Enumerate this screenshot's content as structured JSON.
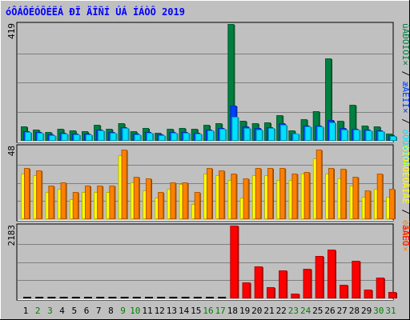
{
  "chart_data": {
    "type": "bar",
    "title": "óÔÁÔÉÓÔÉËÁ ÐÏ ÄÎÑÍ ÚÁ ÍÁÒÔ 2019",
    "days": [
      "1",
      "2",
      "3",
      "4",
      "5",
      "6",
      "7",
      "8",
      "9",
      "10",
      "11",
      "12",
      "13",
      "14",
      "15",
      "16",
      "17",
      "18",
      "19",
      "20",
      "21",
      "22",
      "23",
      "24",
      "25",
      "26",
      "27",
      "28",
      "29",
      "30",
      "31"
    ],
    "weekend_days": [
      "2",
      "3",
      "9",
      "10",
      "16",
      "17",
      "23",
      "24",
      "30",
      "31"
    ],
    "colors": {
      "title": "#0000ff",
      "weekend": "#008000",
      "weekday": "#000000",
      "hits": "#008040",
      "files": "#0040ff",
      "pages": "#00e0ff",
      "visits": "#ffff00",
      "hosts": "#ff8000",
      "kbytes": "#ff0000"
    },
    "panels": [
      {
        "name": "requests",
        "ymax_label": "419",
        "ymax": 419,
        "legend": [
          {
            "label": "úÁÐÒÏÓÏ×",
            "color": "#008040"
          },
          {
            "label": "æÁÊÌÏ×",
            "color": "#0040ff"
          },
          {
            "label": "óÔÒÁÎÉÃ",
            "color": "#00e0ff"
          }
        ],
        "series": [
          {
            "name": "úÁÐÒÏÓÏ×",
            "values": [
              52,
              40,
              32,
              42,
              37,
              35,
              57,
              44,
              64,
              34,
              45,
              30,
              44,
              45,
              42,
              57,
              62,
              419,
              72,
              62,
              67,
              92,
              37,
              77,
              107,
              297,
              72,
              130,
              55,
              52,
              27
            ]
          },
          {
            "name": "æÁÊÌÏ×",
            "values": [
              35,
              32,
              22,
              30,
              25,
              25,
              40,
              32,
              50,
              25,
              32,
              22,
              32,
              32,
              30,
              40,
              45,
              125,
              52,
              45,
              50,
              62,
              27,
              55,
              55,
              75,
              45,
              42,
              40,
              37,
              20
            ]
          },
          {
            "name": "óÔÒÁÎÉÃ",
            "values": [
              32,
              30,
              20,
              27,
              22,
              22,
              37,
              30,
              47,
              22,
              30,
              20,
              30,
              30,
              27,
              37,
              42,
              85,
              47,
              40,
              45,
              57,
              25,
              52,
              52,
              65,
              40,
              40,
              37,
              35,
              18
            ]
          }
        ]
      },
      {
        "name": "visitors",
        "ymax_label": "48",
        "ymax": 48,
        "legend": [
          {
            "label": "ðÏÓÅÔÉÔÅÌÅÊ",
            "color": "#ffff00"
          },
          {
            "label": "èÏÓÔÏ×",
            "color": "#ff8000"
          }
        ],
        "series": [
          {
            "name": "ðÏÓÅÔÉÔÅÌÅÊ",
            "values": [
              30,
              29,
              18,
              20,
              13,
              18,
              18,
              18,
              42,
              24,
              19,
              14,
              20,
              23,
              10,
              30,
              29,
              26,
              14,
              29,
              29,
              26,
              26,
              30,
              40,
              30,
              27,
              22,
              15,
              20,
              15
            ]
          },
          {
            "name": "èÏÓÔÏ×",
            "values": [
              34,
              32,
              22,
              24,
              18,
              22,
              22,
              22,
              46,
              28,
              27,
              18,
              24,
              24,
              18,
              34,
              32,
              30,
              27,
              34,
              34,
              34,
              30,
              31,
              46,
              34,
              33,
              28,
              19,
              30,
              20
            ]
          }
        ]
      },
      {
        "name": "traffic",
        "ymax_label": "2183",
        "ymax": 2183,
        "legend": [
          {
            "label": "âÁÊÔ",
            "color": "#ff0000"
          }
        ],
        "series": [
          {
            "name": "âÁÊÔ",
            "values": [
              0,
              0,
              0,
              0,
              0,
              0,
              0,
              0,
              0,
              0,
              0,
              0,
              0,
              0,
              0,
              0,
              0,
              2183,
              480,
              960,
              330,
              850,
              150,
              890,
              1270,
              1460,
              400,
              1130,
              270,
              620,
              190
            ]
          }
        ]
      }
    ]
  }
}
